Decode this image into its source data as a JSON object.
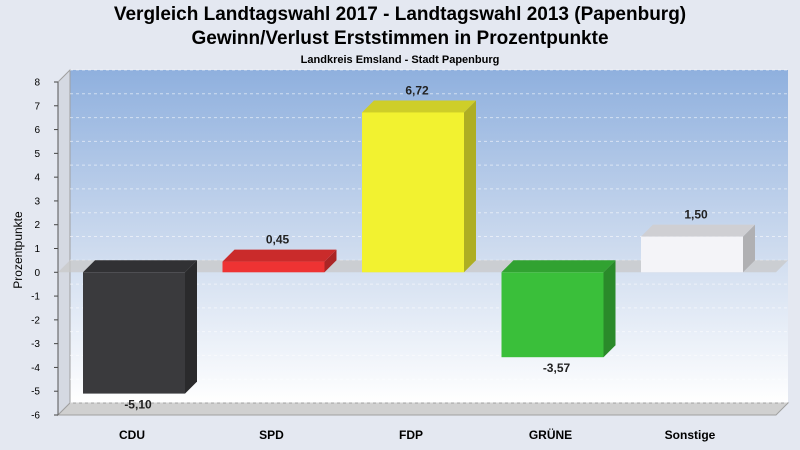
{
  "chart_data": {
    "type": "bar",
    "title": "Vergleich Landtagswahl 2017 - Landtagswahl 2013 (Papenburg)",
    "title_line2": "Gewinn/Verlust Erststimmen in Prozentpunkte",
    "subtitle": "Landkreis Emsland - Stadt Papenburg",
    "ylabel": "Prozentpunkte",
    "xlabel": "",
    "categories": [
      "CDU",
      "SPD",
      "FDP",
      "GRÜNE",
      "Sonstige"
    ],
    "values": [
      -5.1,
      0.45,
      6.72,
      -3.57,
      1.5
    ],
    "value_labels": [
      "-5,10",
      "0,45",
      "6,72",
      "-3,57",
      "1,50"
    ],
    "colors": [
      "#3a3a3d",
      "#ee3333",
      "#f2f230",
      "#3abf3a",
      "#f4f4f8"
    ],
    "ylim": [
      -6,
      8
    ],
    "yticks": [
      -6,
      -5,
      -4,
      -3,
      -2,
      -1,
      0,
      1,
      2,
      3,
      4,
      5,
      6,
      7,
      8
    ],
    "grid": true,
    "legend": "none"
  }
}
